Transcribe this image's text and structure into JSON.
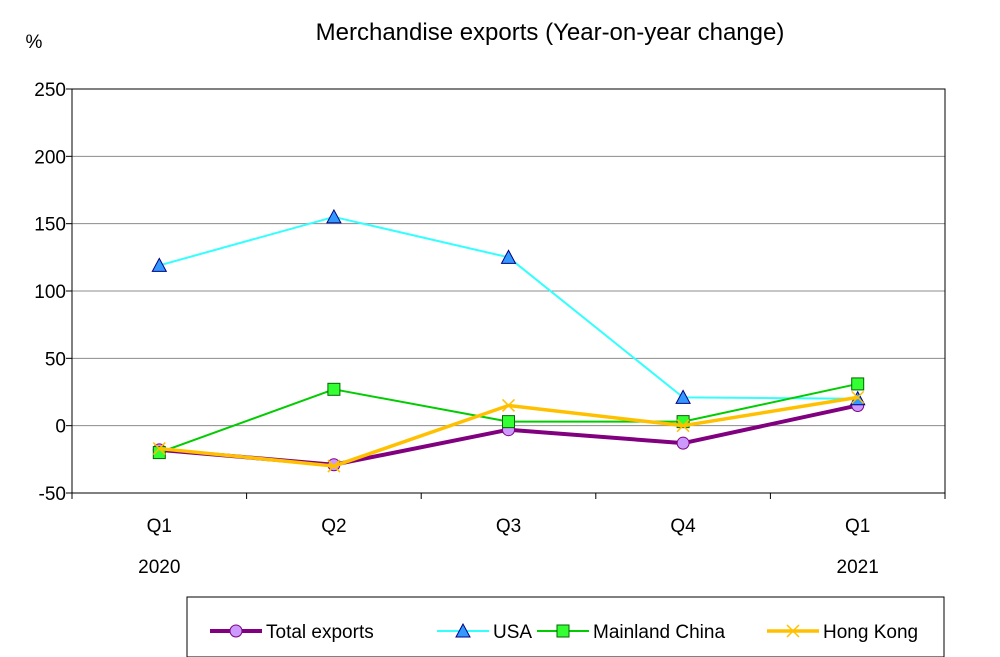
{
  "chart_data": {
    "type": "line",
    "title": "Merchandise exports (Year-on-year change)",
    "ylabel": "%",
    "xlabel": "",
    "ylim": [
      -50,
      250
    ],
    "yticks": [
      -50,
      0,
      50,
      100,
      150,
      200,
      250
    ],
    "grid": true,
    "categories": [
      "Q1",
      "Q2",
      "Q3",
      "Q4",
      "Q1"
    ],
    "year_labels": [
      {
        "category_index": 0,
        "label": "2020"
      },
      {
        "category_index": 4,
        "label": "2021"
      }
    ],
    "legend_position": "bottom",
    "series": [
      {
        "name": "Total exports",
        "color": "#800080",
        "marker": "circle",
        "marker_fill": "#cc99ff",
        "values": [
          -18,
          -29,
          -3,
          -13,
          15
        ]
      },
      {
        "name": "USA",
        "color": "#33ffff",
        "marker": "triangle",
        "marker_fill": "#3399ff",
        "values": [
          119,
          155,
          125,
          21,
          20
        ]
      },
      {
        "name": "Mainland China",
        "color": "#00cc00",
        "marker": "square",
        "marker_fill": "#33ff33",
        "values": [
          -20,
          27,
          3,
          3,
          31
        ]
      },
      {
        "name": "Hong Kong",
        "color": "#ffc000",
        "marker": "x",
        "marker_fill": "#ffc000",
        "values": [
          -17,
          -30,
          15,
          0,
          21
        ]
      }
    ]
  }
}
